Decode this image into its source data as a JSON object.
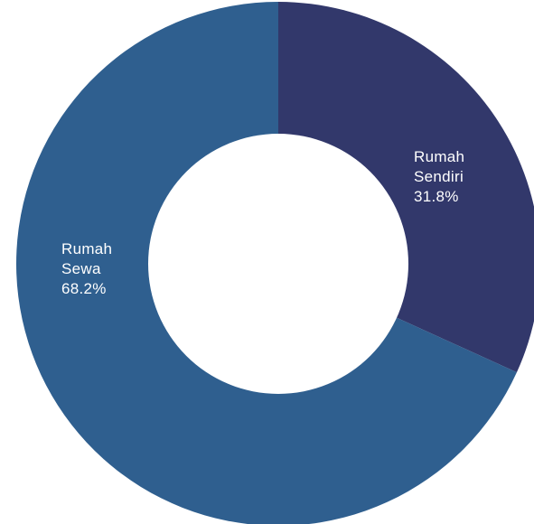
{
  "chart_data": {
    "type": "pie",
    "variant": "donut",
    "title": "",
    "slices": [
      {
        "label_lines": [
          "Rumah",
          "Sendiri"
        ],
        "value_label": "31.8%",
        "value": 31.8,
        "color": "#32386b"
      },
      {
        "label_lines": [
          "Rumah",
          "Sewa"
        ],
        "value_label": "68.2%",
        "value": 68.2,
        "color": "#2f5f8f"
      }
    ],
    "start_angle": "12 o'clock",
    "direction": "clockwise",
    "legend": "none"
  }
}
